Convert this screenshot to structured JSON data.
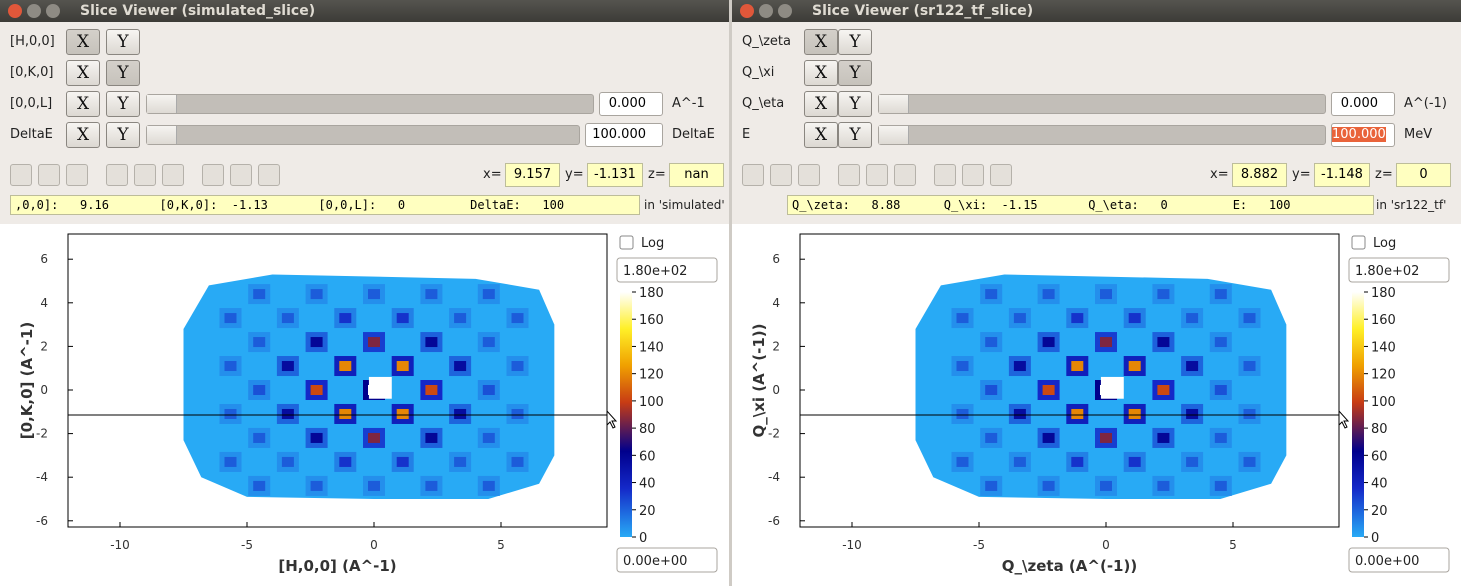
{
  "windows": [
    {
      "title": "Slice Viewer (simulated_slice)",
      "dimensions": [
        {
          "label": "[H,0,0]",
          "x_button": "X",
          "y_button": "Y"
        },
        {
          "label": "[0,K,0]",
          "x_button": "X",
          "y_button": "Y"
        },
        {
          "label": "[0,0,L]",
          "x_button": "X",
          "y_button": "Y",
          "value": "0.000",
          "unit": "A^-1"
        },
        {
          "label": "DeltaE",
          "x_button": "X",
          "y_button": "Y",
          "value": "100.000",
          "unit": "DeltaE"
        }
      ],
      "coordinates": {
        "x_label": "x=",
        "x": "9.157",
        "y_label": "y=",
        "y": "-1.131",
        "z_label": "z=",
        "z": "nan"
      },
      "readout": ",0,0]:   9.16       [0,K,0]:  -1.13       [0,0,L]:   0         DeltaE:   100",
      "readout_suffix": "in 'simulated'",
      "plot": {
        "x_label": "[H,0,0] (A^-1)",
        "y_label": "[0,K,0] (A^-1)",
        "x_ticks": [
          -10,
          -5,
          0,
          5
        ],
        "y_ticks": [
          -6,
          -4,
          -2,
          0,
          2,
          4,
          6
        ],
        "log_label": "Log",
        "color_max": "1.80e+02",
        "color_min": "0.00e+00",
        "colorbar_ticks": [
          0,
          20,
          40,
          60,
          80,
          100,
          120,
          140,
          160,
          180
        ]
      }
    },
    {
      "title": "Slice Viewer (sr122_tf_slice)",
      "dimensions": [
        {
          "label": "Q_\\zeta",
          "x_button": "X",
          "y_button": "Y"
        },
        {
          "label": "Q_\\xi",
          "x_button": "X",
          "y_button": "Y"
        },
        {
          "label": "Q_\\eta",
          "x_button": "X",
          "y_button": "Y",
          "value": "0.000",
          "unit": "A^(-1)"
        },
        {
          "label": "E",
          "x_button": "X",
          "y_button": "Y",
          "value": "100.000",
          "unit": "MeV"
        }
      ],
      "coordinates": {
        "x_label": "x=",
        "x": "8.882",
        "y_label": "y=",
        "y": "-1.148",
        "z_label": "z=",
        "z": "0"
      },
      "readout": "Q_\\zeta:   8.88      Q_\\xi:  -1.15       Q_\\eta:   0         E:   100",
      "readout_suffix": "in 'sr122_tf'",
      "plot": {
        "x_label": "Q_\\zeta (A^(-1))",
        "y_label": "Q_\\xi (A^(-1))",
        "x_ticks": [
          -10,
          -5,
          0,
          5
        ],
        "y_ticks": [
          -6,
          -4,
          -2,
          0,
          2,
          4,
          6
        ],
        "log_label": "Log",
        "color_max": "1.80e+02",
        "color_min": "0.00e+00",
        "colorbar_ticks": [
          0,
          20,
          40,
          60,
          80,
          100,
          120,
          140,
          160,
          180
        ]
      }
    }
  ]
}
